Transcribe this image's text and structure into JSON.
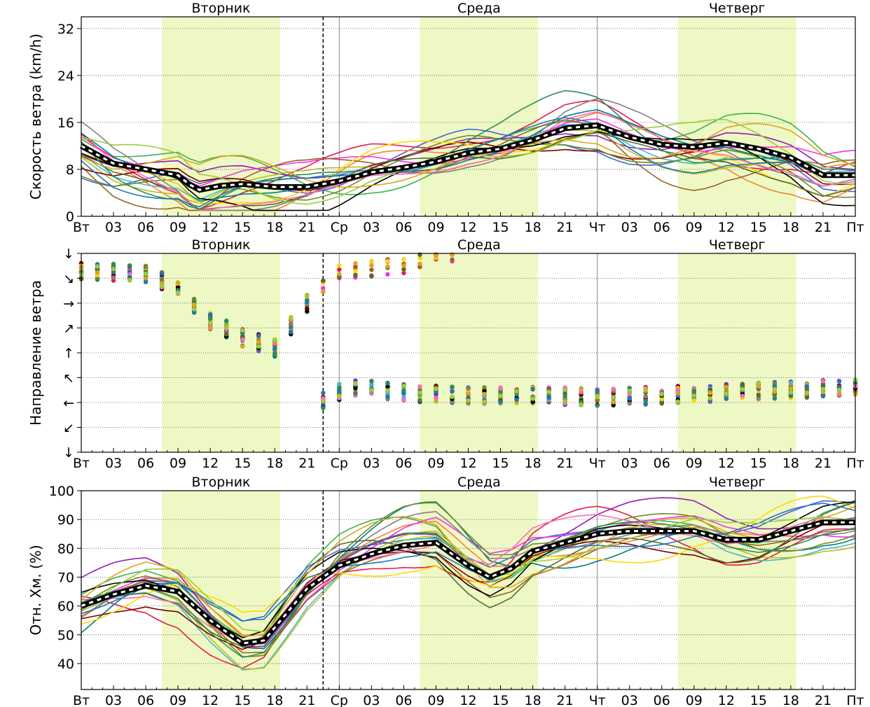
{
  "colors": {
    "daylight_band": "#eef8c4",
    "median_outer": "#000000",
    "median_inner": "#ffffff",
    "palette": [
      "#e6194b",
      "#3cb44b",
      "#4363d8",
      "#f58231",
      "#911eb4",
      "#46b8c8",
      "#f032e6",
      "#bcbc22",
      "#008080",
      "#9a6324",
      "#800000",
      "#6b8e23",
      "#ffd700",
      "#808080",
      "#000000",
      "#556b2f",
      "#ff69b4",
      "#2e8b57",
      "#daa520",
      "#1f77b4",
      "#9acd32"
    ]
  },
  "x_tick_labels": [
    "Вт",
    "03",
    "06",
    "09",
    "12",
    "15",
    "18",
    "21",
    "Ср",
    "03",
    "06",
    "09",
    "12",
    "15",
    "18",
    "21",
    "Чт",
    "03",
    "06",
    "09",
    "12",
    "15",
    "18",
    "21",
    "Пт"
  ],
  "day_labels": [
    "Вторник",
    "Среда",
    "Четверг"
  ],
  "chart_data": [
    {
      "type": "line",
      "ylabel": "Скорость ветра (km/h)",
      "ylim": [
        0,
        34
      ],
      "yticks": [
        0,
        8,
        16,
        24,
        32
      ],
      "x_range_hours": [
        0,
        72
      ],
      "now_marker_hour": 22.5,
      "day_separators_hours": [
        24,
        48
      ],
      "daylight_bands_hours": [
        [
          7.5,
          18.5
        ],
        [
          31.5,
          42.5
        ],
        [
          55.5,
          66.5
        ]
      ],
      "median": [
        [
          0,
          12
        ],
        [
          3,
          9
        ],
        [
          6,
          8
        ],
        [
          9,
          7
        ],
        [
          10,
          5.5
        ],
        [
          11,
          4.5
        ],
        [
          13,
          5.2
        ],
        [
          15,
          5.5
        ],
        [
          18,
          5
        ],
        [
          21,
          5
        ],
        [
          24,
          6
        ],
        [
          27,
          7.5
        ],
        [
          30,
          8.3
        ],
        [
          33,
          9.3
        ],
        [
          36,
          10.8
        ],
        [
          39,
          11.5
        ],
        [
          42,
          13
        ],
        [
          45,
          15
        ],
        [
          48,
          15.5
        ],
        [
          51,
          13.5
        ],
        [
          54,
          12.2
        ],
        [
          57,
          11.8
        ],
        [
          60,
          12.5
        ],
        [
          63,
          11.5
        ],
        [
          66,
          10
        ],
        [
          69,
          7
        ],
        [
          72,
          7
        ]
      ],
      "member_count": 21
    },
    {
      "type": "scatter",
      "ylabel": "Направление ветра",
      "ytick_labels": [
        "↓",
        "↙",
        "←",
        "↖",
        "↑",
        "↗",
        "→",
        "↘",
        "↓"
      ],
      "x_range_hours": [
        0,
        72
      ],
      "now_marker_hour": 22.5,
      "day_separators_hours": [
        24,
        48
      ],
      "member_count": 21
    },
    {
      "type": "line",
      "ylabel": "Отн. Хм. (%)",
      "ylim": [
        31,
        100
      ],
      "yticks": [
        40,
        50,
        60,
        70,
        80,
        90,
        100
      ],
      "x_range_hours": [
        0,
        72
      ],
      "now_marker_hour": 22.5,
      "day_separators_hours": [
        24,
        48
      ],
      "median": [
        [
          0,
          60
        ],
        [
          3,
          64
        ],
        [
          6,
          67
        ],
        [
          9,
          65
        ],
        [
          12,
          55
        ],
        [
          15,
          47
        ],
        [
          17,
          48
        ],
        [
          19,
          57
        ],
        [
          21,
          66
        ],
        [
          24,
          74
        ],
        [
          27,
          78
        ],
        [
          30,
          81
        ],
        [
          33,
          82
        ],
        [
          36,
          74
        ],
        [
          38,
          70
        ],
        [
          40,
          73
        ],
        [
          42,
          79
        ],
        [
          45,
          82
        ],
        [
          48,
          85
        ],
        [
          51,
          86
        ],
        [
          54,
          86
        ],
        [
          57,
          86
        ],
        [
          60,
          83
        ],
        [
          63,
          83
        ],
        [
          66,
          86
        ],
        [
          69,
          89
        ],
        [
          72,
          89
        ]
      ],
      "member_count": 21
    }
  ]
}
